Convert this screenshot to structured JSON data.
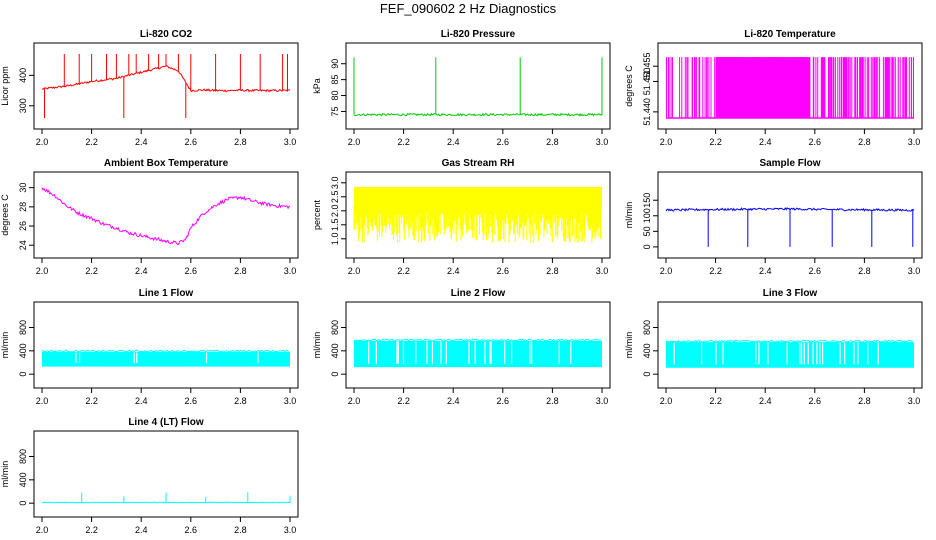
{
  "title": "FEF_090602  2 Hz Diagnostics",
  "chart_data": [
    {
      "id": "co2",
      "type": "line",
      "title": "Li-820 CO2",
      "ylabel": "Licor ppm",
      "color": "#ff0000",
      "xlim": [
        2.0,
        3.0
      ],
      "ylim": [
        250,
        480
      ],
      "xticks": [
        "2.0",
        "2.2",
        "2.4",
        "2.6",
        "2.8",
        "3.0"
      ],
      "yticks": [
        "300",
        "400"
      ],
      "ytick_values": [
        300,
        400
      ],
      "x": [
        2.0,
        2.05,
        2.1,
        2.15,
        2.2,
        2.25,
        2.3,
        2.35,
        2.4,
        2.45,
        2.5,
        2.55,
        2.6,
        2.65,
        2.7,
        2.75,
        2.8,
        2.85,
        2.9,
        2.95,
        3.0
      ],
      "y": [
        355,
        360,
        365,
        372,
        380,
        385,
        390,
        400,
        410,
        420,
        430,
        415,
        350,
        352,
        350,
        350,
        351,
        350,
        350,
        350,
        350
      ]
    },
    {
      "id": "pressure",
      "type": "line",
      "title": "Li-820 Pressure",
      "ylabel": "kPa",
      "color": "#00cc00",
      "xlim": [
        2.0,
        3.0
      ],
      "ylim": [
        72,
        94
      ],
      "xticks": [
        "2.0",
        "2.2",
        "2.4",
        "2.6",
        "2.8",
        "3.0"
      ],
      "yticks": [
        "75",
        "80",
        "85",
        "90"
      ],
      "ytick_values": [
        75,
        80,
        85,
        90
      ],
      "x": [
        2.0,
        2.1,
        2.2,
        2.3,
        2.4,
        2.5,
        2.6,
        2.7,
        2.8,
        2.9,
        3.0
      ],
      "y": [
        74,
        74,
        74,
        74,
        74,
        74,
        74,
        74,
        74,
        74,
        74
      ]
    },
    {
      "id": "temperature",
      "type": "line",
      "title": "Li-820 Temperature",
      "ylabel": "degrees C",
      "color": "#ff00ff",
      "xlim": [
        2.0,
        3.0
      ],
      "ylim": [
        51.437,
        51.46
      ],
      "xticks": [
        "2.0",
        "2.2",
        "2.4",
        "2.6",
        "2.8",
        "3.0"
      ],
      "yticks": [
        "51.440",
        "51.450",
        "51.455"
      ],
      "ytick_values": [
        51.44,
        51.45,
        51.455
      ],
      "x": [
        2.0,
        3.0
      ],
      "y": [
        51.438,
        51.458
      ]
    },
    {
      "id": "ambient",
      "type": "line",
      "title": "Ambient Box Temperature",
      "ylabel": "degrees C",
      "color": "#ff00ff",
      "xlim": [
        2.0,
        3.0
      ],
      "ylim": [
        23.5,
        30.8
      ],
      "xticks": [
        "2.0",
        "2.2",
        "2.4",
        "2.6",
        "2.8",
        "3.0"
      ],
      "yticks": [
        "24",
        "26",
        "28",
        "30"
      ],
      "ytick_values": [
        24,
        26,
        28,
        30
      ],
      "x": [
        2.0,
        2.05,
        2.1,
        2.15,
        2.2,
        2.25,
        2.3,
        2.35,
        2.4,
        2.45,
        2.5,
        2.55,
        2.58,
        2.6,
        2.65,
        2.7,
        2.75,
        2.8,
        2.85,
        2.9,
        2.95,
        3.0
      ],
      "y": [
        30.0,
        29.2,
        28.1,
        27.3,
        26.8,
        26.2,
        25.8,
        25.3,
        25.0,
        24.7,
        24.4,
        24.2,
        24.6,
        25.8,
        27.3,
        28.2,
        28.8,
        29.0,
        28.6,
        28.3,
        28.1,
        28.0
      ]
    },
    {
      "id": "rh",
      "type": "line",
      "title": "Gas Stream RH",
      "ylabel": "percent",
      "color": "#ffff00",
      "xlim": [
        2.0,
        3.0
      ],
      "ylim": [
        0.6,
        3.1
      ],
      "xticks": [
        "2.0",
        "2.2",
        "2.4",
        "2.6",
        "2.8",
        "3.0"
      ],
      "yticks": [
        "1.0",
        "1.5",
        "2.0",
        "2.5",
        "3.0"
      ],
      "ytick_values": [
        1.0,
        1.5,
        2.0,
        2.5,
        3.0
      ],
      "x": [
        2.0,
        3.0
      ],
      "y": [
        0.8,
        2.9
      ]
    },
    {
      "id": "sample",
      "type": "line",
      "title": "Sample Flow",
      "ylabel": "ml/min",
      "color": "#0000ff",
      "xlim": [
        2.0,
        3.0
      ],
      "ylim": [
        -10,
        215
      ],
      "xticks": [
        "2.0",
        "2.2",
        "2.4",
        "2.6",
        "2.8",
        "3.0"
      ],
      "yticks": [
        "0",
        "50",
        "100",
        "150"
      ],
      "ytick_values": [
        0,
        50,
        100,
        150
      ],
      "x": [
        2.0,
        2.17,
        2.33,
        2.5,
        2.67,
        2.83,
        3.0
      ],
      "y": [
        118,
        120,
        121,
        122,
        120,
        119,
        118
      ]
    },
    {
      "id": "line1",
      "type": "line",
      "title": "Line 1 Flow",
      "ylabel": "ml/min",
      "color": "#00ffff",
      "xlim": [
        2.0,
        3.0
      ],
      "ylim": [
        -100,
        1100
      ],
      "xticks": [
        "2.0",
        "2.2",
        "2.4",
        "2.6",
        "2.8",
        "3.0"
      ],
      "yticks": [
        "0",
        "400",
        "800"
      ],
      "ytick_values": [
        0,
        400,
        800
      ],
      "x": [
        2.0,
        3.0
      ],
      "y": [
        130,
        380
      ]
    },
    {
      "id": "line2",
      "type": "line",
      "title": "Line 2 Flow",
      "ylabel": "ml/min",
      "color": "#00ffff",
      "xlim": [
        2.0,
        3.0
      ],
      "ylim": [
        -100,
        1100
      ],
      "xticks": [
        "2.0",
        "2.2",
        "2.4",
        "2.6",
        "2.8",
        "3.0"
      ],
      "yticks": [
        "0",
        "400",
        "800"
      ],
      "ytick_values": [
        0,
        400,
        800
      ],
      "x": [
        2.0,
        3.0
      ],
      "y": [
        120,
        570
      ]
    },
    {
      "id": "line3",
      "type": "line",
      "title": "Line 3 Flow",
      "ylabel": "ml/min",
      "color": "#00ffff",
      "xlim": [
        2.0,
        3.0
      ],
      "ylim": [
        -100,
        1100
      ],
      "xticks": [
        "2.0",
        "2.2",
        "2.4",
        "2.6",
        "2.8",
        "3.0"
      ],
      "yticks": [
        "0",
        "400",
        "800"
      ],
      "ytick_values": [
        0,
        400,
        800
      ],
      "x": [
        2.0,
        3.0
      ],
      "y": [
        110,
        550
      ]
    },
    {
      "id": "line4",
      "type": "line",
      "title": "Line 4 (LT) Flow",
      "ylabel": "ml/min",
      "color": "#00ffff",
      "xlim": [
        2.0,
        3.0
      ],
      "ylim": [
        -100,
        1100
      ],
      "xticks": [
        "2.0",
        "2.2",
        "2.4",
        "2.6",
        "2.8",
        "3.0"
      ],
      "yticks": [
        "0",
        "400",
        "800"
      ],
      "ytick_values": [
        0,
        400,
        800
      ],
      "x": [
        2.0,
        2.16,
        2.33,
        2.5,
        2.66,
        2.83,
        3.0
      ],
      "y": [
        10,
        180,
        120,
        180,
        110,
        190,
        130
      ]
    }
  ]
}
